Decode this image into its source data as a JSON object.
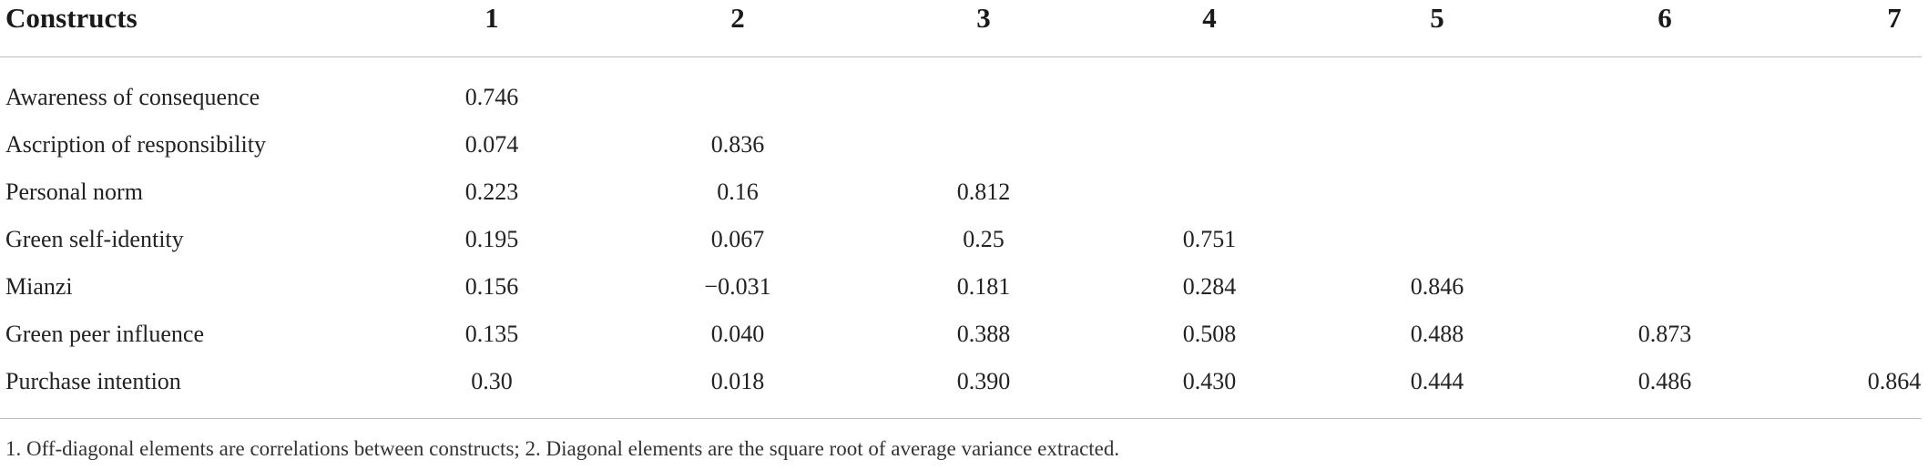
{
  "table": {
    "headers": [
      "Constructs",
      "1",
      "2",
      "3",
      "4",
      "5",
      "6",
      "7"
    ],
    "rows": [
      {
        "label": "Awareness of consequence",
        "values": [
          "0.746",
          "",
          "",
          "",
          "",
          "",
          ""
        ]
      },
      {
        "label": "Ascription of responsibility",
        "values": [
          "0.074",
          "0.836",
          "",
          "",
          "",
          "",
          ""
        ]
      },
      {
        "label": "Personal norm",
        "values": [
          "0.223",
          "0.16",
          "0.812",
          "",
          "",
          "",
          ""
        ]
      },
      {
        "label": "Green self-identity",
        "values": [
          "0.195",
          "0.067",
          "0.25",
          "0.751",
          "",
          "",
          ""
        ]
      },
      {
        "label": "Mianzi",
        "values": [
          "0.156",
          "−0.031",
          "0.181",
          "0.284",
          "0.846",
          "",
          ""
        ]
      },
      {
        "label": "Green peer influence",
        "values": [
          "0.135",
          "0.040",
          "0.388",
          "0.508",
          "0.488",
          "0.873",
          ""
        ]
      },
      {
        "label": "Purchase intention",
        "values": [
          "0.30",
          "0.018",
          "0.390",
          "0.430",
          "0.444",
          "0.486",
          "0.864"
        ]
      }
    ],
    "footnote": "1. Off-diagonal elements are correlations between constructs; 2. Diagonal elements are the square root of average variance extracted."
  }
}
